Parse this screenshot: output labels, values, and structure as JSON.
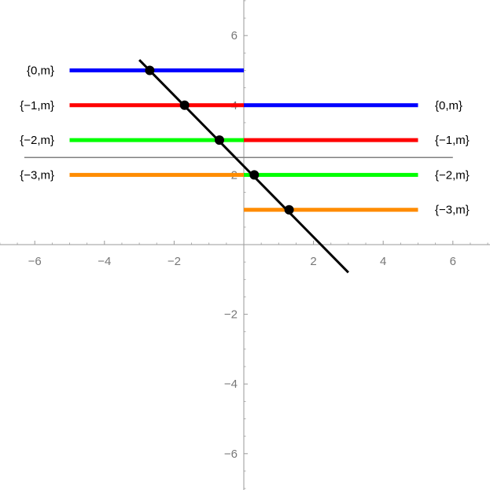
{
  "chart_data": {
    "type": "line",
    "xlim": [
      -7,
      7
    ],
    "ylim": [
      -7,
      7
    ],
    "x_ticks": [
      -6,
      -4,
      -2,
      2,
      4,
      6
    ],
    "y_ticks": [
      -6,
      -4,
      -2,
      2,
      4,
      6
    ],
    "x_tick_labels": [
      "−6",
      "−4",
      "−2",
      "2",
      "4",
      "6"
    ],
    "y_tick_labels": [
      "−6",
      "−4",
      "−2",
      "2",
      "4",
      "6"
    ],
    "grid": false,
    "axis_color": "#9a9a9a",
    "left_series": [
      {
        "name": "{0,m}",
        "y": 5,
        "x": [
          -5,
          0
        ],
        "color": "#0000ff"
      },
      {
        "name": "{−1,m}",
        "y": 4,
        "x": [
          -5,
          0
        ],
        "color": "#ff0000"
      },
      {
        "name": "{−2,m}",
        "y": 3,
        "x": [
          -5,
          0
        ],
        "color": "#00ff00"
      },
      {
        "name": "{−3,m}",
        "y": 2,
        "x": [
          -5,
          0
        ],
        "color": "#ff8c00"
      }
    ],
    "right_series": [
      {
        "name": "{0,m}",
        "y": 4,
        "x": [
          0,
          5
        ],
        "color": "#0000ff"
      },
      {
        "name": "{−1,m}",
        "y": 3,
        "x": [
          0,
          5
        ],
        "color": "#ff0000"
      },
      {
        "name": "{−2,m}",
        "y": 2,
        "x": [
          0,
          5
        ],
        "color": "#00ff00"
      },
      {
        "name": "{−3,m}",
        "y": 1,
        "x": [
          0,
          5
        ],
        "color": "#ff8c00"
      }
    ],
    "gray_line": {
      "y": 2.5,
      "x": [
        -6.3,
        6
      ],
      "color": "#808080"
    },
    "black_line": {
      "x": [
        -3,
        3
      ],
      "y": [
        5.3,
        -0.8
      ],
      "color": "#000000"
    },
    "points": [
      {
        "x": -2.7,
        "y": 5
      },
      {
        "x": -1.7,
        "y": 4
      },
      {
        "x": -0.7,
        "y": 3
      },
      {
        "x": 0.3,
        "y": 2
      },
      {
        "x": 1.3,
        "y": 1
      }
    ]
  }
}
